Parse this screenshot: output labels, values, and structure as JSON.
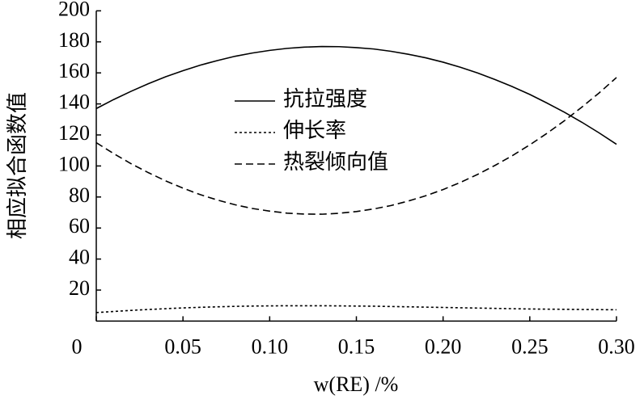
{
  "chart_data": {
    "type": "line",
    "x_label": "w(RE) /%",
    "y_label": "相应拟合函数值",
    "x": [
      0,
      0.01,
      0.02,
      0.03,
      0.04,
      0.05,
      0.06,
      0.07,
      0.08,
      0.09,
      0.1,
      0.11,
      0.12,
      0.13,
      0.14,
      0.15,
      0.16,
      0.17,
      0.18,
      0.19,
      0.2,
      0.21,
      0.22,
      0.23,
      0.24,
      0.25,
      0.26,
      0.27,
      0.28,
      0.29,
      0.3
    ],
    "series": [
      {
        "name": "抗拉强度",
        "color": "#000000",
        "dash": "solid",
        "values": [
          137.0,
          142.8,
          148.1,
          153.0,
          157.5,
          161.4,
          165.0,
          168.0,
          170.7,
          172.8,
          174.5,
          175.8,
          176.6,
          177.0,
          176.9,
          176.3,
          175.4,
          173.9,
          172.0,
          169.7,
          166.9,
          163.6,
          159.9,
          155.7,
          151.1,
          146.1,
          140.5,
          134.6,
          128.2,
          121.3,
          114.0
        ]
      },
      {
        "name": "伸长率",
        "color": "#000000",
        "dash": "dotted",
        "values": [
          5.5,
          6.2,
          6.9,
          7.5,
          8.0,
          8.5,
          8.9,
          9.2,
          9.5,
          9.7,
          9.8,
          9.9,
          9.9,
          9.9,
          9.8,
          9.7,
          9.6,
          9.4,
          9.2,
          9.0,
          8.8,
          8.6,
          8.4,
          8.2,
          8.0,
          7.8,
          7.7,
          7.6,
          7.5,
          7.4,
          7.3
        ]
      },
      {
        "name": "热裂倾向值",
        "color": "#000000",
        "dash": "dashed",
        "values": [
          115.0,
          108.0,
          101.5,
          95.7,
          90.4,
          85.7,
          81.5,
          78.0,
          75.0,
          72.6,
          70.9,
          69.6,
          69.0,
          68.9,
          69.5,
          70.6,
          72.3,
          74.5,
          77.4,
          80.8,
          84.8,
          89.4,
          94.6,
          100.4,
          106.7,
          113.6,
          121.1,
          129.2,
          137.9,
          147.1,
          157.0
        ]
      }
    ],
    "xlim": [
      0,
      0.3
    ],
    "ylim": [
      0,
      200
    ],
    "xticks": [
      0,
      0.05,
      {
        "value": 0.1,
        "label": "0.10"
      },
      0.15,
      {
        "value": 0.2,
        "label": "0.20"
      },
      0.25,
      {
        "value": 0.3,
        "label": "0.30"
      }
    ],
    "yticks": [
      20,
      40,
      60,
      80,
      100,
      120,
      140,
      160,
      180,
      200
    ],
    "grid": false,
    "legend": "center"
  }
}
